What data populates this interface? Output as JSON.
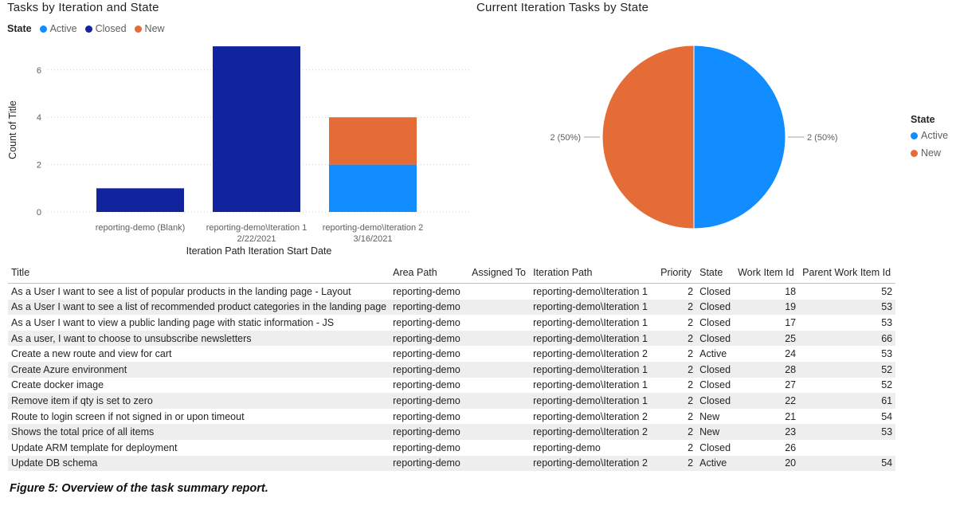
{
  "bar_chart": {
    "title": "Tasks by Iteration and State",
    "legend_label": "State",
    "legend_items": [
      "Active",
      "Closed",
      "New"
    ]
  },
  "pie_chart": {
    "title": "Current Iteration Tasks by State",
    "legend_title": "State",
    "legend_items": [
      "Active",
      "New"
    ]
  },
  "colors": {
    "active": "#118DFF",
    "closed": "#12239E",
    "new": "#E66C37",
    "header_rule": "#9ad2ea",
    "row_alt": "#eeeeee"
  },
  "chart_data": [
    {
      "type": "bar",
      "stacked": true,
      "title": "Tasks by Iteration and State",
      "xlabel": "Iteration Path Iteration Start Date",
      "ylabel": "Count of Title",
      "categories": [
        [
          "reporting-demo (Blank)"
        ],
        [
          "reporting-demo\\Iteration 1",
          "2/22/2021"
        ],
        [
          "reporting-demo\\Iteration 2",
          "3/16/2021"
        ]
      ],
      "series": [
        {
          "name": "Active",
          "color": "#118DFF",
          "values": [
            0,
            0,
            2
          ]
        },
        {
          "name": "Closed",
          "color": "#12239E",
          "values": [
            1,
            7,
            0
          ]
        },
        {
          "name": "New",
          "color": "#E66C37",
          "values": [
            0,
            0,
            2
          ]
        }
      ],
      "ylim": [
        0,
        7
      ],
      "yticks": [
        0,
        2,
        4,
        6
      ],
      "grid": true,
      "legend_position": "top-left"
    },
    {
      "type": "pie",
      "title": "Current Iteration Tasks by State",
      "slices": [
        {
          "name": "Active",
          "value": 2,
          "label": "2 (50%)",
          "color": "#118DFF"
        },
        {
          "name": "New",
          "value": 2,
          "label": "2 (50%)",
          "color": "#E66C37"
        }
      ],
      "legend_position": "right"
    }
  ],
  "table": {
    "columns": [
      "Title",
      "Area Path",
      "Assigned To",
      "Iteration Path",
      "Priority",
      "State",
      "Work Item Id",
      "Parent Work Item Id"
    ],
    "rows": [
      [
        "As a User I want to see a list of popular products in the landing page - Layout",
        "reporting-demo",
        "",
        "reporting-demo\\Iteration 1",
        "2",
        "Closed",
        "18",
        "52"
      ],
      [
        "As a User I want to see a list of recommended product categories in the landing page",
        "reporting-demo",
        "",
        "reporting-demo\\Iteration 1",
        "2",
        "Closed",
        "19",
        "53"
      ],
      [
        "As a User I want to view a public landing page with static information - JS",
        "reporting-demo",
        "",
        "reporting-demo\\Iteration 1",
        "2",
        "Closed",
        "17",
        "53"
      ],
      [
        "As a user, I want to choose to unsubscribe newsletters",
        "reporting-demo",
        "",
        "reporting-demo\\Iteration 1",
        "2",
        "Closed",
        "25",
        "66"
      ],
      [
        "Create a new route and view for cart",
        "reporting-demo",
        "",
        "reporting-demo\\Iteration 2",
        "2",
        "Active",
        "24",
        "53"
      ],
      [
        "Create Azure environment",
        "reporting-demo",
        "",
        "reporting-demo\\Iteration 1",
        "2",
        "Closed",
        "28",
        "52"
      ],
      [
        "Create docker image",
        "reporting-demo",
        "",
        "reporting-demo\\Iteration 1",
        "2",
        "Closed",
        "27",
        "52"
      ],
      [
        "Remove item if qty is set to zero",
        "reporting-demo",
        "",
        "reporting-demo\\Iteration 1",
        "2",
        "Closed",
        "22",
        "61"
      ],
      [
        "Route to login screen if not signed in or upon timeout",
        "reporting-demo",
        "",
        "reporting-demo\\Iteration 2",
        "2",
        "New",
        "21",
        "54"
      ],
      [
        "Shows the total price of all items",
        "reporting-demo",
        "",
        "reporting-demo\\Iteration 2",
        "2",
        "New",
        "23",
        "53"
      ],
      [
        "Update ARM template for deployment",
        "reporting-demo",
        "",
        "reporting-demo",
        "2",
        "Closed",
        "26",
        ""
      ],
      [
        "Update DB schema",
        "reporting-demo",
        "",
        "reporting-demo\\Iteration 2",
        "2",
        "Active",
        "20",
        "54"
      ]
    ]
  },
  "caption": "Figure 5:  Overview of the task summary report."
}
